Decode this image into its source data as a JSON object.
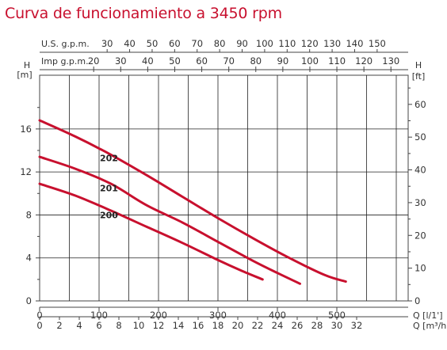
{
  "chart_data": {
    "type": "line",
    "title": "Curva de funcionamiento a 3450 rpm",
    "x_primary": {
      "label": "Q [l/1']",
      "ticks": [
        0,
        100,
        200,
        300,
        400,
        500
      ],
      "range": [
        0,
        620
      ]
    },
    "x_m3h": {
      "label": "Q [m³/h]",
      "ticks": [
        0,
        2,
        4,
        6,
        8,
        10,
        12,
        14,
        16,
        18,
        20,
        22,
        24,
        26,
        28,
        30,
        32
      ]
    },
    "x_usgpm": {
      "label": "U.S. g.p.m.",
      "ticks": [
        30,
        40,
        50,
        60,
        70,
        80,
        90,
        100,
        110,
        120,
        130,
        140,
        150
      ]
    },
    "x_impgpm": {
      "label": "Imp g.p.m.",
      "ticks": [
        20,
        30,
        40,
        50,
        60,
        70,
        80,
        90,
        100,
        110,
        120,
        130
      ]
    },
    "y_left": {
      "label": "H",
      "unit": "[m]",
      "ticks": [
        0,
        4,
        8,
        12,
        16
      ],
      "range": [
        0,
        21
      ]
    },
    "y_right": {
      "label": "H",
      "unit": "[ft]",
      "ticks": [
        0,
        10,
        20,
        30,
        40,
        50,
        60
      ]
    },
    "grid": true,
    "line_color": "#c8102e",
    "series": [
      {
        "name": "202",
        "x": [
          0,
          60,
          120,
          180,
          240,
          300,
          360,
          420,
          480,
          515
        ],
        "y": [
          16.8,
          15.3,
          13.6,
          11.7,
          9.7,
          7.7,
          5.8,
          4.0,
          2.4,
          1.8
        ]
      },
      {
        "name": "201",
        "x": [
          0,
          60,
          120,
          180,
          240,
          300,
          360,
          400,
          438
        ],
        "y": [
          13.4,
          12.3,
          10.9,
          8.9,
          7.3,
          5.5,
          3.7,
          2.6,
          1.6
        ]
      },
      {
        "name": "200",
        "x": [
          0,
          60,
          120,
          180,
          240,
          300,
          340,
          375
        ],
        "y": [
          10.9,
          9.8,
          8.4,
          6.9,
          5.4,
          3.8,
          2.8,
          2.0
        ]
      }
    ]
  }
}
